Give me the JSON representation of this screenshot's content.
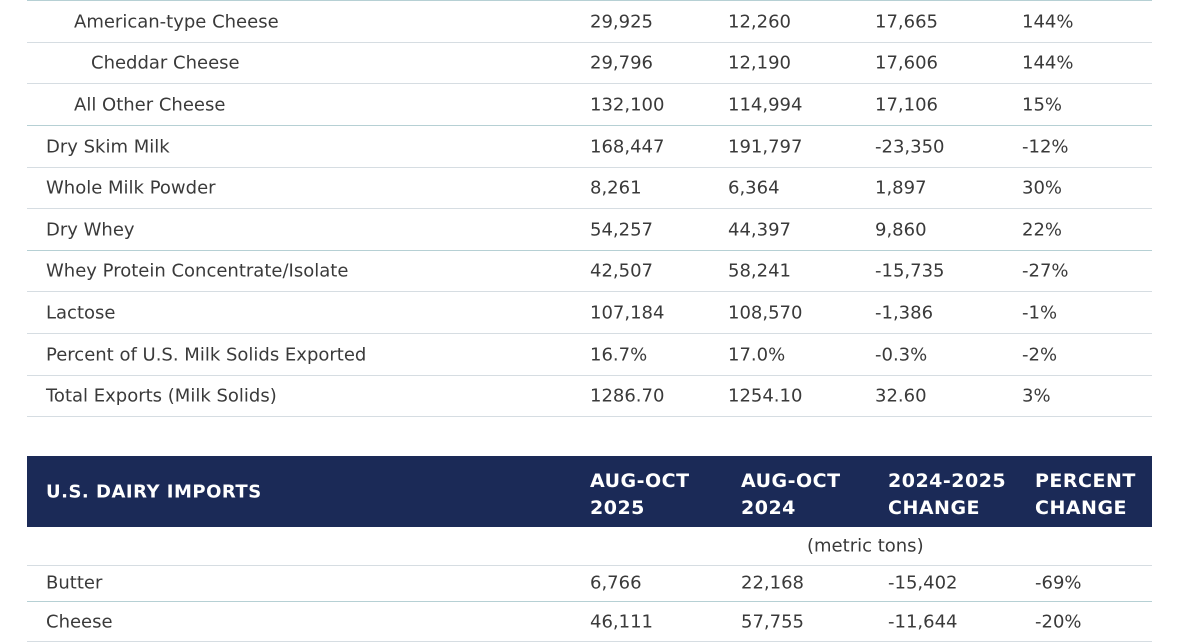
{
  "exports": {
    "rows": [
      {
        "label": "American-type Cheese",
        "indent": 1,
        "v1": "29,925",
        "v2": "12,260",
        "v3": "17,665",
        "v4": "144%"
      },
      {
        "label": "Cheddar Cheese",
        "indent": 2,
        "v1": "29,796",
        "v2": "12,190",
        "v3": "17,606",
        "v4": "144%"
      },
      {
        "label": "All Other Cheese",
        "indent": 1,
        "v1": "132,100",
        "v2": "114,994",
        "v3": "17,106",
        "v4": "15%"
      },
      {
        "label": "Dry Skim Milk",
        "indent": 0,
        "v1": "168,447",
        "v2": "191,797",
        "v3": "-23,350",
        "v4": "-12%"
      },
      {
        "label": "Whole Milk Powder",
        "indent": 0,
        "v1": "8,261",
        "v2": "6,364",
        "v3": "1,897",
        "v4": "30%"
      },
      {
        "label": "Dry Whey",
        "indent": 0,
        "v1": "54,257",
        "v2": "44,397",
        "v3": "9,860",
        "v4": "22%"
      },
      {
        "label": "Whey Protein Concentrate/Isolate",
        "indent": 0,
        "v1": "42,507",
        "v2": "58,241",
        "v3": "-15,735",
        "v4": "-27%"
      },
      {
        "label": "Lactose",
        "indent": 0,
        "v1": "107,184",
        "v2": "108,570",
        "v3": "-1,386",
        "v4": "-1%"
      },
      {
        "label": "Percent of U.S. Milk Solids Exported",
        "indent": 0,
        "v1": "16.7%",
        "v2": "17.0%",
        "v3": "-0.3%",
        "v4": "-2%"
      },
      {
        "label": "Total Exports (Milk Solids)",
        "indent": 0,
        "v1": "1286.70",
        "v2": "1254.10",
        "v3": "32.60",
        "v4": "3%"
      }
    ]
  },
  "imports": {
    "title": "U.S. DAIRY IMPORTS",
    "col1": "AUG-OCT\n2025",
    "col2": "AUG-OCT\n2024",
    "col3": "2024-2025\nCHANGE",
    "col4": "PERCENT\nCHANGE",
    "units": "(metric tons)",
    "rows": [
      {
        "label": "Butter",
        "v1": "6,766",
        "v2": "22,168",
        "v3": "-15,402",
        "v4": "-69%"
      },
      {
        "label": "Cheese",
        "v1": "46,111",
        "v2": "57,755",
        "v3": "-11,644",
        "v4": "-20%"
      }
    ]
  }
}
